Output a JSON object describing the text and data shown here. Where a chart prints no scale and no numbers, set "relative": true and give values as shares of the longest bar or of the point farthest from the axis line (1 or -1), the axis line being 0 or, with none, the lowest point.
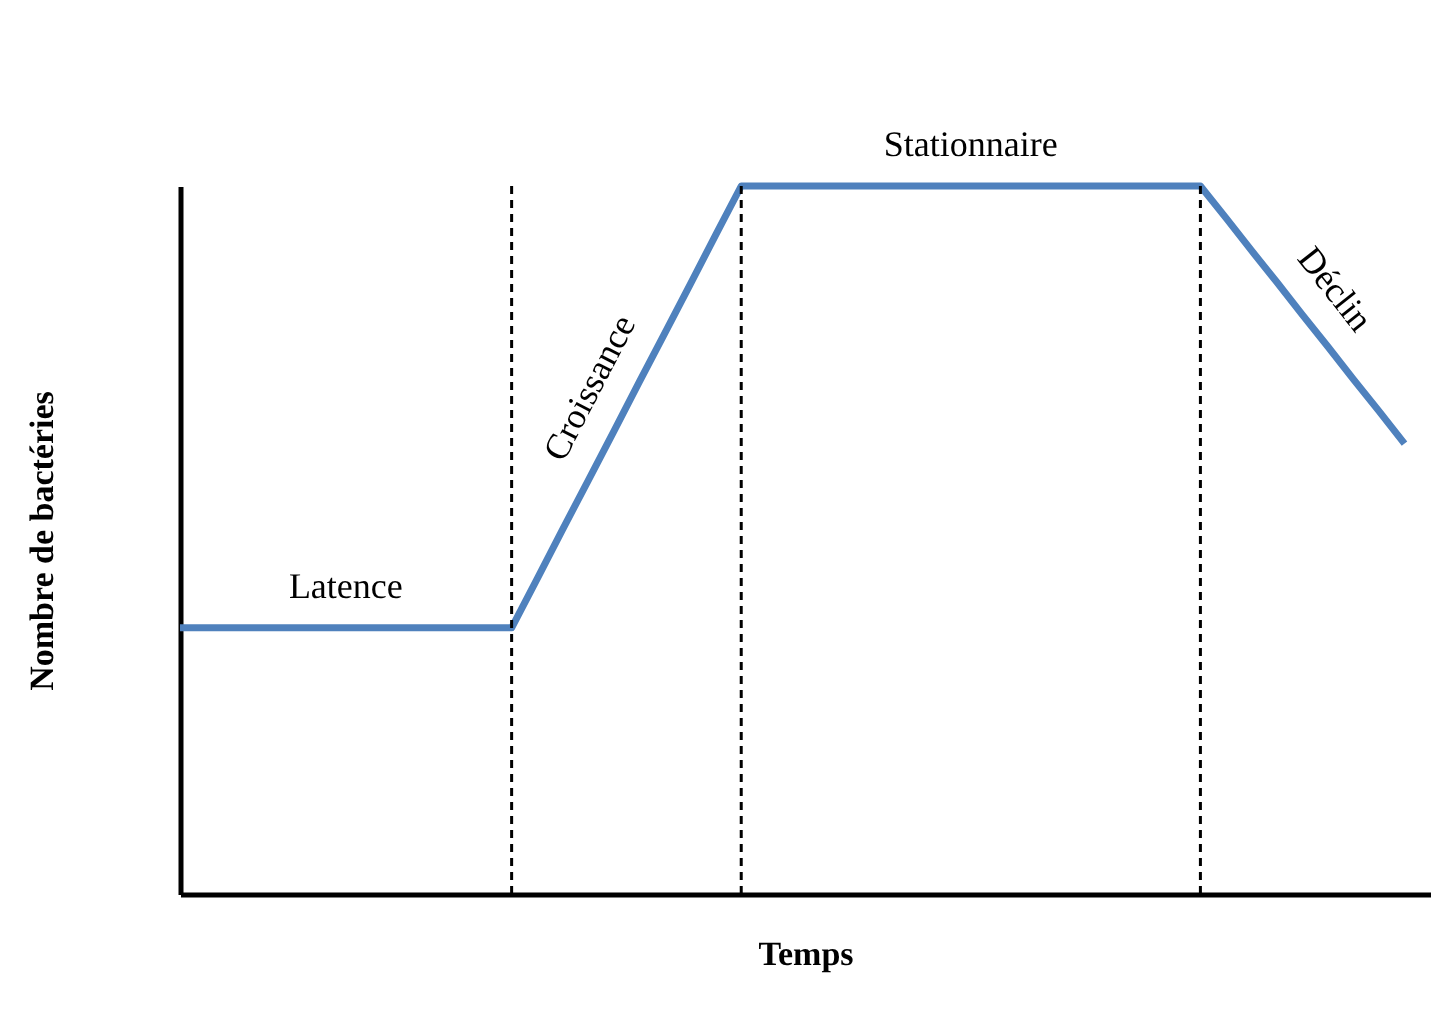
{
  "chart_data": {
    "type": "line",
    "relative": true,
    "xlabel": "Temps",
    "ylabel": "Nombre de bactéries",
    "categories": [
      null,
      null,
      null,
      null,
      null,
      null,
      null,
      null,
      null,
      null,
      null,
      null,
      null,
      null,
      null,
      null,
      null,
      null,
      null,
      null,
      null,
      null,
      null,
      null,
      null,
      null,
      null,
      null,
      null,
      null,
      null,
      null,
      null,
      null,
      null,
      null,
      null,
      null,
      null,
      null,
      null,
      null,
      null,
      null,
      null,
      null,
      null,
      null,
      null
    ],
    "values": [
      0.376,
      0.376,
      0.376,
      0.376,
      0.376,
      0.376,
      0.376,
      0.376,
      0.376,
      0.376,
      0.376,
      0.376,
      0.376,
      0.376,
      0.445,
      0.515,
      0.584,
      0.653,
      0.723,
      0.792,
      0.861,
      0.931,
      1,
      1,
      1,
      1,
      1,
      1,
      1,
      1,
      1,
      1,
      1,
      1,
      1,
      1,
      1,
      1,
      1,
      1,
      1,
      0.955,
      0.909,
      0.864,
      0.818,
      0.773,
      0.727,
      0.682,
      0.636
    ],
    "color": "#4f81bd",
    "grid": "x",
    "annotations": [
      "Latence",
      "Croissance",
      "Stationnaire",
      "Déclin"
    ]
  }
}
